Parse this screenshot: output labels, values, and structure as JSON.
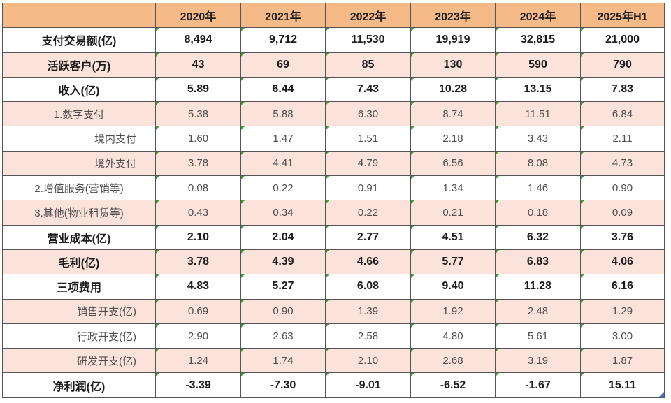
{
  "colors": {
    "header_bg": "#f6b988",
    "stripe_bg": "#fbe2da",
    "error_flag_green": "#3e9b3e",
    "fill_handle_blue": "#4472c4"
  },
  "table": {
    "columns": [
      "",
      "2020年",
      "2021年",
      "2022年",
      "2023年",
      "2024年",
      "2025年H1"
    ],
    "rows": [
      {
        "label": "支付交易额(亿)",
        "values": [
          "8,494",
          "9,712",
          "11,530",
          "19,919",
          "32,815",
          "21,000"
        ],
        "bold": true,
        "stripe": false,
        "label_align": "center"
      },
      {
        "label": "活跃客户(万)",
        "values": [
          "43",
          "69",
          "85",
          "130",
          "590",
          "790"
        ],
        "bold": true,
        "stripe": true,
        "label_align": "center"
      },
      {
        "label": "收入(亿)",
        "values": [
          "5.89",
          "6.44",
          "7.43",
          "10.28",
          "13.15",
          "7.83"
        ],
        "bold": true,
        "stripe": false,
        "label_align": "center"
      },
      {
        "label": "1.数字支付",
        "values": [
          "5.38",
          "5.88",
          "6.30",
          "8.74",
          "11.51",
          "6.84"
        ],
        "bold": false,
        "stripe": true,
        "label_align": "center"
      },
      {
        "label": "境内支付",
        "values": [
          "1.60",
          "1.47",
          "1.51",
          "2.18",
          "3.43",
          "2.11"
        ],
        "bold": false,
        "stripe": false,
        "label_align": "indent"
      },
      {
        "label": "境外支付",
        "values": [
          "3.78",
          "4.41",
          "4.79",
          "6.56",
          "8.08",
          "4.73"
        ],
        "bold": false,
        "stripe": true,
        "label_align": "indent"
      },
      {
        "label": "2.增值服务(营销等)",
        "values": [
          "0.08",
          "0.22",
          "0.91",
          "1.34",
          "1.46",
          "0.90"
        ],
        "bold": false,
        "stripe": false,
        "label_align": "center"
      },
      {
        "label": "3.其他(物业租赁等)",
        "values": [
          "0.43",
          "0.34",
          "0.22",
          "0.21",
          "0.18",
          "0.09"
        ],
        "bold": false,
        "stripe": true,
        "label_align": "center"
      },
      {
        "label": "营业成本(亿)",
        "values": [
          "2.10",
          "2.04",
          "2.77",
          "4.51",
          "6.32",
          "3.76"
        ],
        "bold": true,
        "stripe": false,
        "label_align": "center"
      },
      {
        "label": "毛利(亿)",
        "values": [
          "3.78",
          "4.39",
          "4.66",
          "5.77",
          "6.83",
          "4.06"
        ],
        "bold": true,
        "stripe": true,
        "label_align": "center"
      },
      {
        "label": "三项费用",
        "values": [
          "4.83",
          "5.27",
          "6.08",
          "9.40",
          "11.28",
          "6.16"
        ],
        "bold": true,
        "stripe": false,
        "label_align": "center"
      },
      {
        "label": "销售开支(亿)",
        "values": [
          "0.69",
          "0.90",
          "1.39",
          "1.92",
          "2.48",
          "1.29"
        ],
        "bold": false,
        "stripe": true,
        "label_align": "indent"
      },
      {
        "label": "行政开支(亿)",
        "values": [
          "2.90",
          "2.63",
          "2.58",
          "4.80",
          "5.61",
          "3.00"
        ],
        "bold": false,
        "stripe": false,
        "label_align": "indent"
      },
      {
        "label": "研发开支(亿)",
        "values": [
          "1.24",
          "1.74",
          "2.10",
          "2.68",
          "3.19",
          "1.87"
        ],
        "bold": false,
        "stripe": true,
        "label_align": "indent"
      },
      {
        "label": "净利润(亿)",
        "values": [
          "-3.39",
          "-7.30",
          "-9.01",
          "-6.52",
          "-1.67",
          "15.11"
        ],
        "bold": true,
        "stripe": false,
        "label_align": "center"
      }
    ]
  }
}
